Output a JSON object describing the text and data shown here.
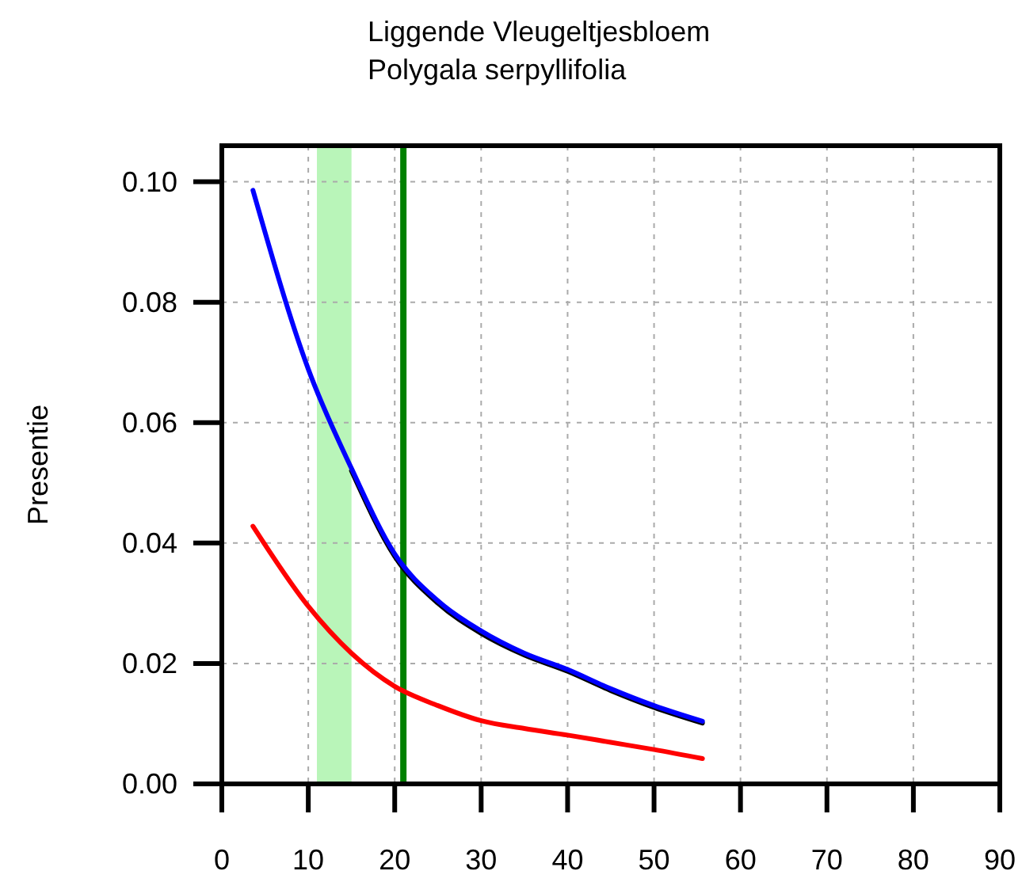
{
  "chart_data": {
    "type": "line",
    "title": "Liggende Vleugeltjesbloem",
    "subtitle": "Polygala serpyllifolia",
    "ylabel": "Presentie",
    "xlim": [
      0,
      90
    ],
    "xticks": [
      0,
      10,
      20,
      30,
      40,
      50,
      60,
      70,
      80,
      90
    ],
    "ylim": [
      0,
      0.106
    ],
    "yticks": [
      {
        "value": 0,
        "label": "0.00"
      },
      {
        "value": 0.02,
        "label": "0.02"
      },
      {
        "value": 0.04,
        "label": "0.04"
      },
      {
        "value": 0.06,
        "label": "0.06"
      },
      {
        "value": 0.08,
        "label": "0.08"
      },
      {
        "value": 0.1,
        "label": "0.10"
      }
    ],
    "grid": true,
    "line_style": "solid",
    "bands": [
      {
        "axis": "x",
        "from": 11,
        "to": 15,
        "color": "#b9f5b9"
      }
    ],
    "ref_lines": [
      {
        "axis": "x",
        "value": 21,
        "color": "#008000"
      }
    ],
    "series": [
      {
        "color": "#000000",
        "x": [
          15,
          20,
          25,
          30,
          35,
          40,
          45,
          50,
          55.6
        ],
        "values": [
          0.052,
          0.0378,
          0.03,
          0.025,
          0.0214,
          0.0187,
          0.0155,
          0.0127,
          0.0101
        ]
      },
      {
        "color": "#0000ff",
        "x": [
          3.6,
          10,
          15,
          20,
          25,
          30,
          35,
          40,
          45,
          50,
          55.6
        ],
        "values": [
          0.0986,
          0.0689,
          0.0524,
          0.0382,
          0.0304,
          0.0254,
          0.0217,
          0.019,
          0.0158,
          0.013,
          0.0104
        ]
      },
      {
        "color": "#ff0000",
        "x": [
          3.6,
          10,
          15,
          20,
          25,
          30,
          35,
          40,
          45,
          50,
          55.6
        ],
        "values": [
          0.0428,
          0.0295,
          0.0217,
          0.0162,
          0.013,
          0.0105,
          0.0092,
          0.0081,
          0.0069,
          0.0057,
          0.0042
        ]
      }
    ]
  }
}
